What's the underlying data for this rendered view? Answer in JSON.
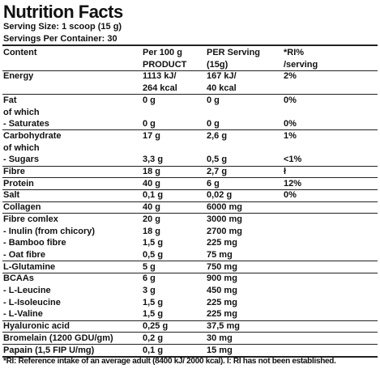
{
  "header": {
    "title": "Nutrition Facts",
    "serving_size": "Serving Size: 1 scoop (15 g)",
    "servings_per_container": "Servings Per Container: 30"
  },
  "table": {
    "groups": [
      {
        "rows": [
          [
            "Content",
            "Per 100 g",
            "PER Serving",
            "*RI%"
          ],
          [
            null,
            "PRODUCT",
            "(15g)",
            "/serving"
          ]
        ]
      },
      {
        "rows": [
          [
            "Energy",
            "1113 kJ/",
            "167 kJ/",
            "2%"
          ],
          [
            null,
            "264 kcal",
            "40 kcal",
            null
          ]
        ]
      },
      {
        "rows": [
          [
            "Fat",
            "0 g",
            "0 g",
            "0%"
          ],
          [
            "of which",
            null,
            null,
            null
          ],
          [
            "- Saturates",
            "0 g",
            "0 g",
            "0%"
          ]
        ]
      },
      {
        "rows": [
          [
            "Carbohydrate",
            "17 g",
            "2,6 g",
            "1%"
          ],
          [
            "of which",
            null,
            null,
            null
          ],
          [
            "- Sugars",
            "3,3 g",
            "0,5 g",
            "<1%"
          ]
        ]
      },
      {
        "rows": [
          [
            "Fibre",
            "18 g",
            "2,7 g",
            "ł"
          ]
        ]
      },
      {
        "rows": [
          [
            "Protein",
            "40 g",
            "6 g",
            "12%"
          ]
        ]
      },
      {
        "rows": [
          [
            "Salt",
            "0,1 g",
            "0,02 g",
            "0%"
          ]
        ]
      },
      {
        "rows": [
          [
            "Collagen",
            "40 g",
            "6000 mg",
            null
          ]
        ]
      },
      {
        "rows": [
          [
            "Fibre comlex",
            "20 g",
            "3000 mg",
            null
          ],
          [
            "- Inulin (from chicory)",
            "18 g",
            "2700 mg",
            null
          ],
          [
            "- Bamboo fibre",
            "1,5 g",
            "225 mg",
            null
          ],
          [
            "- Oat fibre",
            "0,5 g",
            "75 mg",
            null
          ]
        ]
      },
      {
        "rows": [
          [
            "L-Glutamine",
            "5 g",
            "750 mg",
            null
          ]
        ]
      },
      {
        "rows": [
          [
            "BCAAs",
            "6 g",
            "900 mg",
            null
          ],
          [
            "- L-Leucine",
            "3 g",
            "450 mg",
            null
          ],
          [
            "- L-Isoleucine",
            "1,5 g",
            "225 mg",
            null
          ],
          [
            "- L-Valine",
            "1,5 g",
            "225 mg",
            null
          ]
        ]
      },
      {
        "rows": [
          [
            "Hyaluronic acid",
            "0,25 g",
            "37,5 mg",
            null
          ]
        ]
      },
      {
        "rows": [
          [
            "Bromelain (1200 GDU/gm)",
            "0,2 g",
            "30 mg",
            null
          ]
        ]
      },
      {
        "rows": [
          [
            "Papain (1,5 FIP U/mg)",
            "0,1 g",
            "15 mg",
            null
          ]
        ]
      }
    ]
  },
  "footnote": "*RI: Reference intake of an average adult (8400 kJ/ 2000 kcal). I: RI has not been established."
}
